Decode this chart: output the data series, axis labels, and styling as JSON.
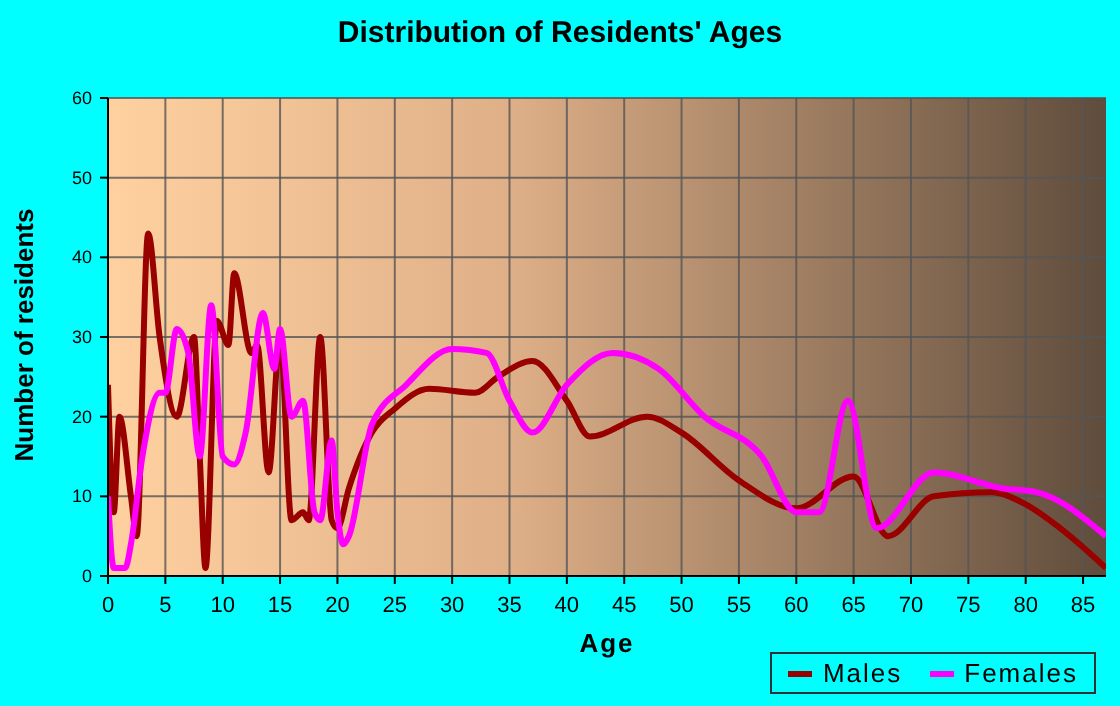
{
  "chart_data": {
    "type": "line",
    "title": "Distribution of Residents' Ages",
    "xlabel": "Age",
    "ylabel": "Number of residents",
    "xlim": [
      0,
      87
    ],
    "xticks": [
      0,
      5,
      10,
      15,
      20,
      25,
      30,
      35,
      40,
      45,
      50,
      55,
      60,
      65,
      70,
      75,
      80,
      85
    ],
    "ylim": [
      0,
      60
    ],
    "yticks": [
      0,
      10,
      20,
      30,
      40,
      50,
      60
    ],
    "grid": true,
    "legend": "bottom right",
    "marker": "none",
    "line_style": "solid",
    "series": [
      {
        "name": "Males",
        "color": "#990000",
        "x": [
          0,
          0.5,
          1,
          2,
          2.5,
          3.5,
          4.5,
          6,
          7.5,
          8,
          8.5,
          9.5,
          10.5,
          11,
          12.5,
          13,
          14,
          15,
          16,
          17,
          17.5,
          18.5,
          19.5,
          20,
          21,
          23,
          25,
          28,
          32,
          34,
          37,
          40,
          42,
          47,
          50,
          55,
          60,
          65,
          68,
          72,
          77,
          80,
          83,
          87
        ],
        "values": [
          24,
          8,
          20,
          10,
          5,
          43,
          30,
          20,
          30,
          15,
          1,
          32,
          29,
          38,
          28,
          29,
          13,
          30,
          7,
          8,
          7,
          30,
          7,
          6,
          11,
          18,
          21,
          23.5,
          23,
          25,
          27,
          22,
          17.5,
          20,
          18,
          12,
          8.5,
          12.5,
          5,
          10,
          10.5,
          9,
          6,
          1
        ]
      },
      {
        "name": "Females",
        "color": "#ff00ff",
        "x": [
          0,
          0.5,
          1.5,
          2,
          3,
          4.5,
          5,
          6,
          7,
          8,
          9,
          10,
          11,
          12,
          13.5,
          14.5,
          15,
          16,
          17,
          18,
          18.5,
          19.5,
          20,
          20.5,
          21,
          23,
          26,
          30,
          33,
          35,
          37,
          40,
          44,
          48,
          52,
          57,
          60,
          62,
          64.5,
          67,
          72,
          78,
          81,
          87
        ],
        "values": [
          10,
          1,
          1,
          4,
          15,
          23,
          23,
          31,
          28,
          15,
          34,
          15,
          14,
          18,
          33,
          26,
          31,
          20,
          22,
          8,
          7,
          17,
          8,
          4,
          5,
          19,
          24,
          28.5,
          28,
          22,
          18,
          24,
          28,
          26,
          20,
          15,
          8,
          8,
          22,
          6,
          13,
          11,
          10.5,
          5
        ]
      }
    ]
  }
}
